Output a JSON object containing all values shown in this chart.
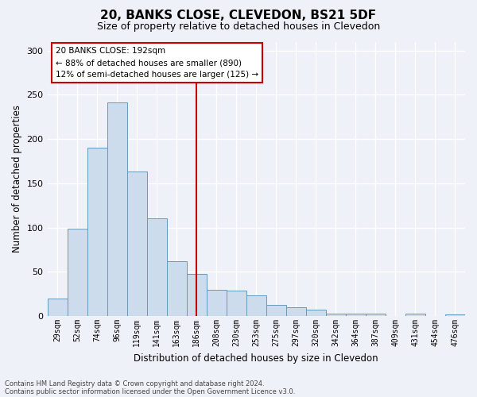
{
  "title": "20, BANKS CLOSE, CLEVEDON, BS21 5DF",
  "subtitle": "Size of property relative to detached houses in Clevedon",
  "xlabel": "Distribution of detached houses by size in Clevedon",
  "ylabel": "Number of detached properties",
  "bin_labels": [
    "29sqm",
    "52sqm",
    "74sqm",
    "96sqm",
    "119sqm",
    "141sqm",
    "163sqm",
    "186sqm",
    "208sqm",
    "230sqm",
    "253sqm",
    "275sqm",
    "297sqm",
    "320sqm",
    "342sqm",
    "364sqm",
    "387sqm",
    "409sqm",
    "431sqm",
    "454sqm",
    "476sqm"
  ],
  "bar_heights": [
    20,
    99,
    190,
    241,
    163,
    110,
    62,
    48,
    30,
    29,
    23,
    13,
    10,
    7,
    3,
    3,
    3,
    0,
    3,
    0,
    2
  ],
  "bar_color": "#ccdcec",
  "bar_edgecolor": "#6699bb",
  "vline_x": 7.5,
  "vline_color": "#cc0000",
  "ylim": [
    0,
    310
  ],
  "yticks": [
    0,
    50,
    100,
    150,
    200,
    250,
    300
  ],
  "annotation_title": "20 BANKS CLOSE: 192sqm",
  "annotation_line1": "← 88% of detached houses are smaller (890)",
  "annotation_line2": "12% of semi-detached houses are larger (125) →",
  "annotation_box_facecolor": "#ffffff",
  "annotation_box_edgecolor": "#cc0000",
  "footnote1": "Contains HM Land Registry data © Crown copyright and database right 2024.",
  "footnote2": "Contains public sector information licensed under the Open Government Licence v3.0.",
  "background_color": "#eef2f8",
  "grid_color": "#ffffff",
  "title_fontsize": 11,
  "subtitle_fontsize": 9,
  "ylabel_fontsize": 8.5,
  "xlabel_fontsize": 8.5,
  "tick_fontsize": 7,
  "footnote_fontsize": 6,
  "annotation_fontsize": 7.5
}
